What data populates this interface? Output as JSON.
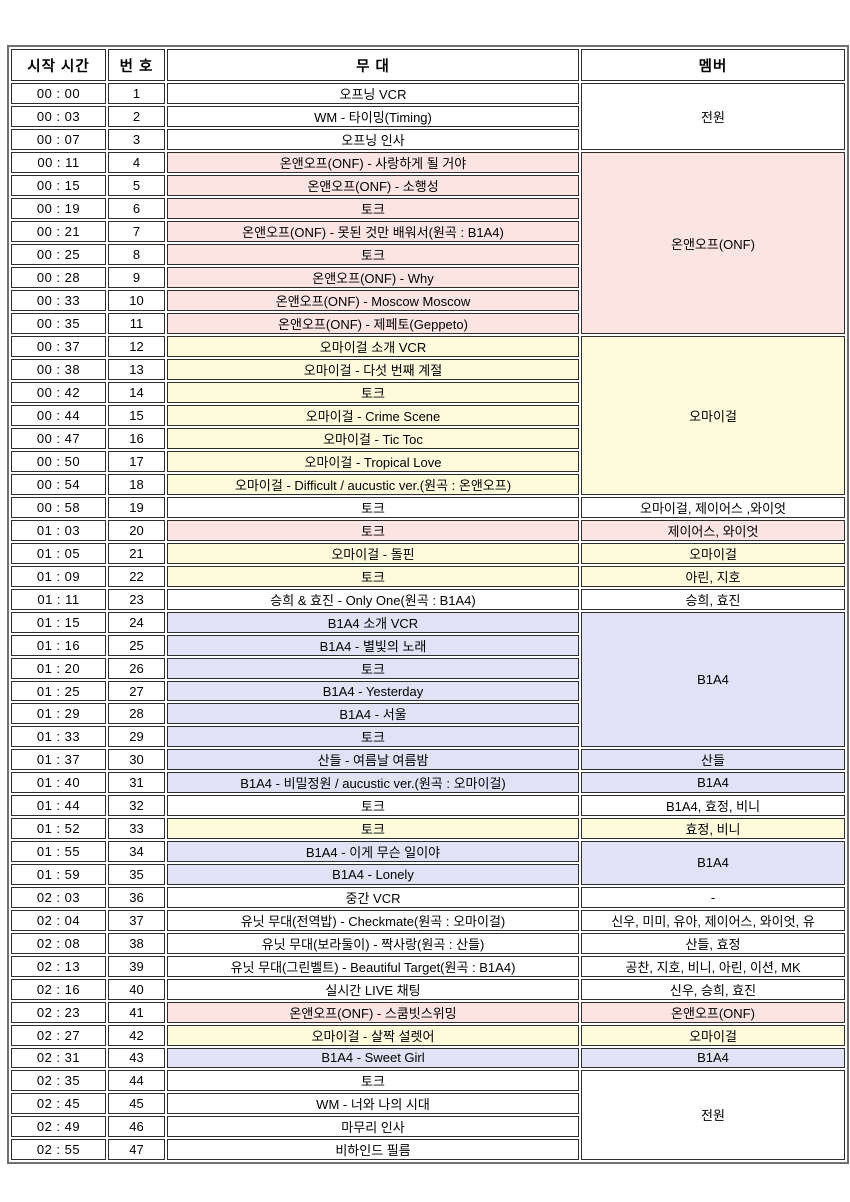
{
  "colors": {
    "white": "#ffffff",
    "pink": "#fce4e3",
    "yellow": "#fdfbdc",
    "lavender": "#e2e2f6",
    "cell_border": "#2e2e2e",
    "outer_border": "#6f6f6f"
  },
  "table": {
    "header": {
      "time": "시작 시간",
      "no": "번 호",
      "stage": "무 대",
      "members": "멤버"
    },
    "rows": [
      {
        "time": "00 : 00",
        "no": "1",
        "stage": "오프닝 VCR",
        "color": "white",
        "member": {
          "text": "전원",
          "rowspan": 3,
          "color": "white"
        }
      },
      {
        "time": "00 : 03",
        "no": "2",
        "stage": "WM - 타이밍(Timing)",
        "color": "white"
      },
      {
        "time": "00 : 07",
        "no": "3",
        "stage": "오프닝 인사",
        "color": "white"
      },
      {
        "time": "00 : 11",
        "no": "4",
        "stage": "온앤오프(ONF) - 사랑하게 될 거야",
        "color": "pink",
        "member": {
          "text": "온앤오프(ONF)",
          "rowspan": 8,
          "color": "pink"
        }
      },
      {
        "time": "00 : 15",
        "no": "5",
        "stage": "온앤오프(ONF) - 소행성",
        "color": "pink"
      },
      {
        "time": "00 : 19",
        "no": "6",
        "stage": "토크",
        "color": "pink"
      },
      {
        "time": "00 : 21",
        "no": "7",
        "stage": "온앤오프(ONF) - 못된 것만 배워서(원곡 : B1A4)",
        "color": "pink"
      },
      {
        "time": "00 : 25",
        "no": "8",
        "stage": "토크",
        "color": "pink"
      },
      {
        "time": "00 : 28",
        "no": "9",
        "stage": "온앤오프(ONF) - Why",
        "color": "pink"
      },
      {
        "time": "00 : 33",
        "no": "10",
        "stage": "온앤오프(ONF) - Moscow Moscow",
        "color": "pink"
      },
      {
        "time": "00 : 35",
        "no": "11",
        "stage": "온앤오프(ONF) - 제페토(Geppeto)",
        "color": "pink"
      },
      {
        "time": "00 : 37",
        "no": "12",
        "stage": "오마이걸 소개 VCR",
        "color": "yellow",
        "member": {
          "text": "오마이걸",
          "rowspan": 7,
          "color": "yellow"
        }
      },
      {
        "time": "00 : 38",
        "no": "13",
        "stage": "오마이걸 - 다섯 번째 계절",
        "color": "yellow"
      },
      {
        "time": "00 : 42",
        "no": "14",
        "stage": "토크",
        "color": "yellow"
      },
      {
        "time": "00 : 44",
        "no": "15",
        "stage": "오마이걸 - Crime Scene",
        "color": "yellow"
      },
      {
        "time": "00 : 47",
        "no": "16",
        "stage": "오마이걸 - Tic Toc",
        "color": "yellow"
      },
      {
        "time": "00 : 50",
        "no": "17",
        "stage": "오마이걸 - Tropical Love",
        "color": "yellow"
      },
      {
        "time": "00 : 54",
        "no": "18",
        "stage": "오마이걸 - Difficult / aucustic ver.(원곡 : 온앤오프)",
        "color": "yellow"
      },
      {
        "time": "00 : 58",
        "no": "19",
        "stage": "토크",
        "color": "white",
        "member": {
          "text": "오마이걸, 제이어스 ,와이엇",
          "rowspan": 1,
          "color": "white"
        }
      },
      {
        "time": "01 : 03",
        "no": "20",
        "stage": "토크",
        "color": "pink",
        "member": {
          "text": "제이어스, 와이엇",
          "rowspan": 1,
          "color": "pink"
        }
      },
      {
        "time": "01 : 05",
        "no": "21",
        "stage": "오마이걸 - 돌핀",
        "color": "yellow",
        "member": {
          "text": "오마이걸",
          "rowspan": 1,
          "color": "yellow"
        }
      },
      {
        "time": "01 : 09",
        "no": "22",
        "stage": "토크",
        "color": "yellow",
        "member": {
          "text": "아린, 지호",
          "rowspan": 1,
          "color": "yellow"
        }
      },
      {
        "time": "01 : 11",
        "no": "23",
        "stage": "승희 & 효진 - Only One(원곡 : B1A4)",
        "color": "white",
        "member": {
          "text": "승희, 효진",
          "rowspan": 1,
          "color": "white"
        }
      },
      {
        "time": "01 : 15",
        "no": "24",
        "stage": "B1A4 소개 VCR",
        "color": "lavender",
        "member": {
          "text": "B1A4",
          "rowspan": 6,
          "color": "lavender"
        }
      },
      {
        "time": "01 : 16",
        "no": "25",
        "stage": "B1A4 - 별빛의 노래",
        "color": "lavender"
      },
      {
        "time": "01 : 20",
        "no": "26",
        "stage": "토크",
        "color": "lavender"
      },
      {
        "time": "01 : 25",
        "no": "27",
        "stage": "B1A4 - Yesterday",
        "color": "lavender"
      },
      {
        "time": "01 : 29",
        "no": "28",
        "stage": "B1A4 - 서울",
        "color": "lavender"
      },
      {
        "time": "01 : 33",
        "no": "29",
        "stage": "토크",
        "color": "lavender"
      },
      {
        "time": "01 : 37",
        "no": "30",
        "stage": "산들 - 여름날 여름밤",
        "color": "lavender",
        "member": {
          "text": "산들",
          "rowspan": 1,
          "color": "lavender"
        }
      },
      {
        "time": "01 : 40",
        "no": "31",
        "stage": "B1A4 - 비밀정원 / aucustic ver.(원곡 : 오마이걸)",
        "color": "lavender",
        "member": {
          "text": "B1A4",
          "rowspan": 1,
          "color": "lavender"
        }
      },
      {
        "time": "01 : 44",
        "no": "32",
        "stage": "토크",
        "color": "white",
        "member": {
          "text": "B1A4, 효정, 비니",
          "rowspan": 1,
          "color": "white"
        }
      },
      {
        "time": "01 : 52",
        "no": "33",
        "stage": "토크",
        "color": "yellow",
        "member": {
          "text": "효정, 비니",
          "rowspan": 1,
          "color": "yellow"
        }
      },
      {
        "time": "01 : 55",
        "no": "34",
        "stage": "B1A4 - 이게 무슨 일이야",
        "color": "lavender",
        "member": {
          "text": "B1A4",
          "rowspan": 2,
          "color": "lavender"
        }
      },
      {
        "time": "01 : 59",
        "no": "35",
        "stage": "B1A4 - Lonely",
        "color": "lavender"
      },
      {
        "time": "02 : 03",
        "no": "36",
        "stage": "중간 VCR",
        "color": "white",
        "member": {
          "text": "-",
          "rowspan": 1,
          "color": "white"
        }
      },
      {
        "time": "02 : 04",
        "no": "37",
        "stage": "유닛 무대(전역밥) - Checkmate(원곡 : 오마이걸)",
        "color": "white",
        "member": {
          "text": "신우, 미미, 유아, 제이어스, 와이엇, 유",
          "rowspan": 1,
          "color": "white"
        }
      },
      {
        "time": "02 : 08",
        "no": "38",
        "stage": "유닛 무대(보라둘이) - 짝사랑(원곡 : 산들)",
        "color": "white",
        "member": {
          "text": "산들, 효정",
          "rowspan": 1,
          "color": "white"
        }
      },
      {
        "time": "02 : 13",
        "no": "39",
        "stage": "유닛 무대(그린벨트) - Beautiful Target(원곡 : B1A4)",
        "color": "white",
        "member": {
          "text": "공찬, 지호, 비니, 아린, 이션, MK",
          "rowspan": 1,
          "color": "white"
        }
      },
      {
        "time": "02 : 16",
        "no": "40",
        "stage": "실시간 LIVE 채팅",
        "color": "white",
        "member": {
          "text": "신우, 승희, 효진",
          "rowspan": 1,
          "color": "white"
        }
      },
      {
        "time": "02 : 23",
        "no": "41",
        "stage": "온앤오프(ONF) - 스쿰빗스위밍",
        "color": "pink",
        "member": {
          "text": "온앤오프(ONF)",
          "rowspan": 1,
          "color": "pink"
        }
      },
      {
        "time": "02 : 27",
        "no": "42",
        "stage": "오마이걸 - 살짝 설렛어",
        "color": "yellow",
        "member": {
          "text": "오마이걸",
          "rowspan": 1,
          "color": "yellow"
        }
      },
      {
        "time": "02 : 31",
        "no": "43",
        "stage": "B1A4 - Sweet Girl",
        "color": "lavender",
        "member": {
          "text": "B1A4",
          "rowspan": 1,
          "color": "lavender"
        }
      },
      {
        "time": "02 : 35",
        "no": "44",
        "stage": "토크",
        "color": "white",
        "member": {
          "text": "전원",
          "rowspan": 4,
          "color": "white"
        }
      },
      {
        "time": "02 : 45",
        "no": "45",
        "stage": "WM - 너와 나의 시대",
        "color": "white"
      },
      {
        "time": "02 : 49",
        "no": "46",
        "stage": "마무리 인사",
        "color": "white"
      },
      {
        "time": "02 : 55",
        "no": "47",
        "stage": "비하인드 필름",
        "color": "white"
      }
    ]
  }
}
